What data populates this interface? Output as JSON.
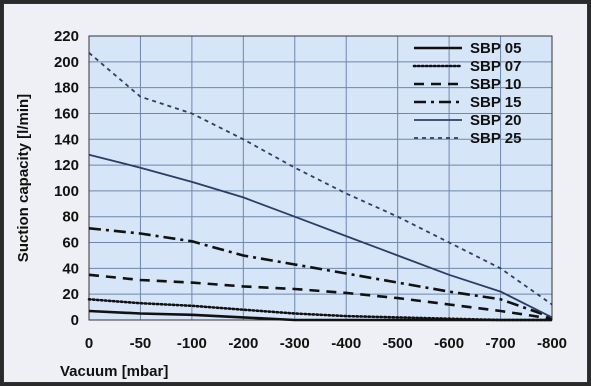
{
  "chart_data": {
    "type": "line",
    "title": "",
    "xlabel": "Vacuum [mbar]",
    "ylabel": "Suction capacity [l/min]",
    "x": [
      0,
      -50,
      -100,
      -200,
      -300,
      -400,
      -500,
      -600,
      -700,
      -800
    ],
    "x_tick_labels": [
      "0",
      "-50",
      "-100",
      "-200",
      "-300",
      "-400",
      "-500",
      "-600",
      "-700",
      "-800"
    ],
    "y_ticks": [
      0,
      20,
      40,
      60,
      80,
      100,
      120,
      140,
      160,
      180,
      200,
      220
    ],
    "ylim": [
      0,
      220
    ],
    "grid": true,
    "legend_position": "top-right",
    "series": [
      {
        "name": "SBP 05",
        "style": "solid-thick",
        "color": "#111111",
        "points": [
          [
            0,
            7
          ],
          [
            -50,
            5
          ],
          [
            -100,
            4
          ],
          [
            -200,
            2
          ],
          [
            -300,
            0
          ],
          [
            -800,
            0
          ]
        ]
      },
      {
        "name": "SBP 07",
        "style": "dotted",
        "color": "#111111",
        "points": [
          [
            0,
            16
          ],
          [
            -50,
            13
          ],
          [
            -100,
            11
          ],
          [
            -200,
            8
          ],
          [
            -300,
            5
          ],
          [
            -400,
            3
          ],
          [
            -500,
            2
          ],
          [
            -600,
            1
          ],
          [
            -700,
            0
          ],
          [
            -800,
            0
          ]
        ]
      },
      {
        "name": "SBP 10",
        "style": "dashed",
        "color": "#111111",
        "points": [
          [
            0,
            35
          ],
          [
            -50,
            31
          ],
          [
            -100,
            29
          ],
          [
            -200,
            26
          ],
          [
            -300,
            24
          ],
          [
            -400,
            21
          ],
          [
            -500,
            17
          ],
          [
            -600,
            12
          ],
          [
            -700,
            7
          ],
          [
            -800,
            1
          ]
        ]
      },
      {
        "name": "SBP 15",
        "style": "dash-dot",
        "color": "#111111",
        "points": [
          [
            0,
            71
          ],
          [
            -50,
            67
          ],
          [
            -100,
            61
          ],
          [
            -200,
            50
          ],
          [
            -300,
            43
          ],
          [
            -400,
            36
          ],
          [
            -500,
            29
          ],
          [
            -600,
            22
          ],
          [
            -700,
            16
          ],
          [
            -800,
            2
          ]
        ]
      },
      {
        "name": "SBP 20",
        "style": "solid-thin",
        "color": "#2c3e66",
        "points": [
          [
            0,
            128
          ],
          [
            -50,
            118
          ],
          [
            -100,
            107
          ],
          [
            -200,
            95
          ],
          [
            -300,
            80
          ],
          [
            -400,
            65
          ],
          [
            -500,
            50
          ],
          [
            -600,
            35
          ],
          [
            -700,
            22
          ],
          [
            -800,
            2
          ]
        ]
      },
      {
        "name": "SBP 25",
        "style": "short-dash",
        "color": "#2c3e66",
        "points": [
          [
            0,
            207
          ],
          [
            -50,
            173
          ],
          [
            -100,
            160
          ],
          [
            -200,
            140
          ],
          [
            -300,
            118
          ],
          [
            -400,
            98
          ],
          [
            -500,
            80
          ],
          [
            -600,
            60
          ],
          [
            -700,
            40
          ],
          [
            -800,
            12
          ]
        ]
      }
    ]
  }
}
